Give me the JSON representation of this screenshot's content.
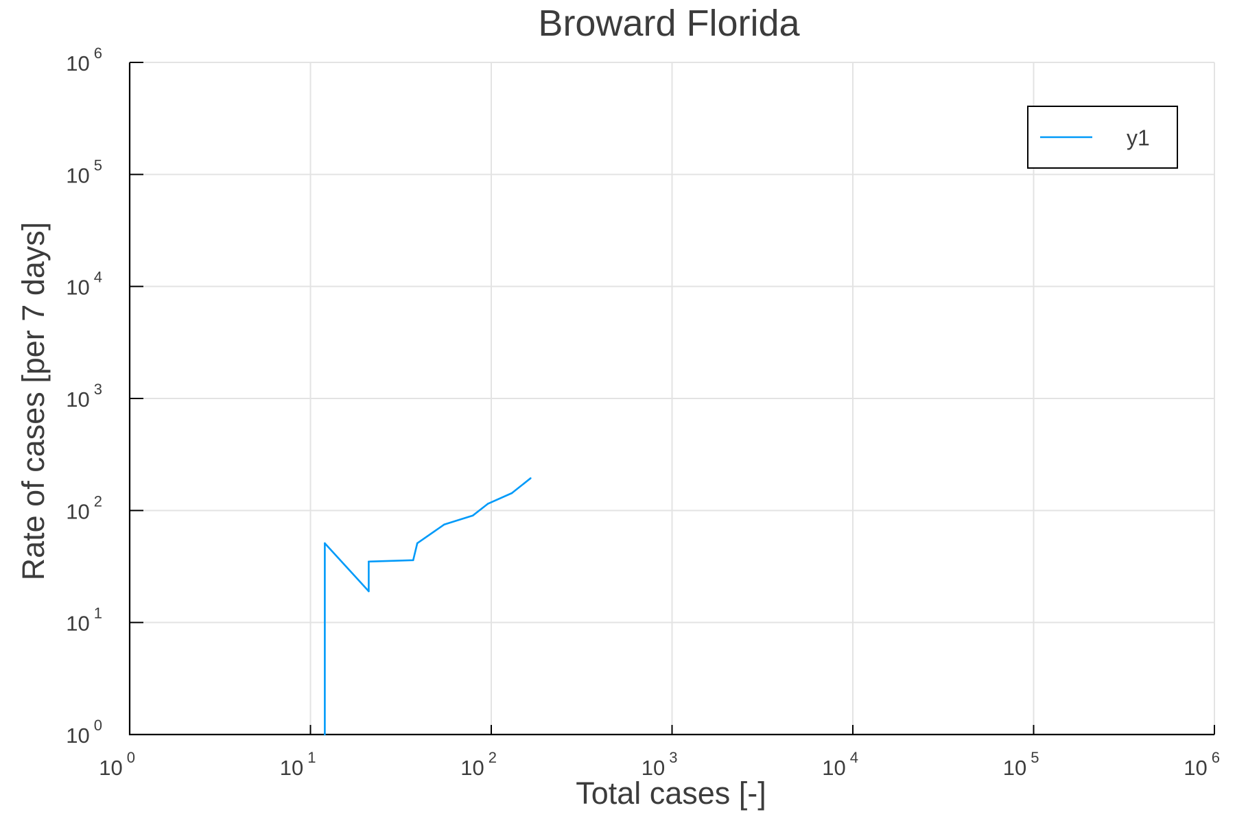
{
  "chart_data": {
    "type": "line",
    "title": "Broward Florida",
    "xlabel": "Total cases [-]",
    "ylabel": "Rate of cases [per 7 days]",
    "xscale": "log",
    "yscale": "log",
    "xlim": [
      1,
      1000000
    ],
    "ylim": [
      1,
      1000000
    ],
    "grid": true,
    "legend_position": "top-right",
    "x_ticks": [
      {
        "value": 1,
        "base": "10",
        "exp": "0"
      },
      {
        "value": 10,
        "base": "10",
        "exp": "1"
      },
      {
        "value": 100,
        "base": "10",
        "exp": "2"
      },
      {
        "value": 1000,
        "base": "10",
        "exp": "3"
      },
      {
        "value": 10000,
        "base": "10",
        "exp": "4"
      },
      {
        "value": 100000,
        "base": "10",
        "exp": "5"
      },
      {
        "value": 1000000,
        "base": "10",
        "exp": "6"
      }
    ],
    "y_ticks": [
      {
        "value": 1,
        "base": "10",
        "exp": "0"
      },
      {
        "value": 10,
        "base": "10",
        "exp": "1"
      },
      {
        "value": 100,
        "base": "10",
        "exp": "2"
      },
      {
        "value": 1000,
        "base": "10",
        "exp": "3"
      },
      {
        "value": 10000,
        "base": "10",
        "exp": "4"
      },
      {
        "value": 100000,
        "base": "10",
        "exp": "5"
      },
      {
        "value": 1000000,
        "base": "10",
        "exp": "6"
      }
    ],
    "series": [
      {
        "name": "y1",
        "color": "#009af9",
        "x": [
          12,
          12,
          21,
          21,
          37,
          39,
          55,
          79,
          96,
          130,
          165
        ],
        "y": [
          1,
          51,
          19,
          35,
          36,
          51,
          75,
          90,
          115,
          143,
          194
        ]
      }
    ]
  }
}
